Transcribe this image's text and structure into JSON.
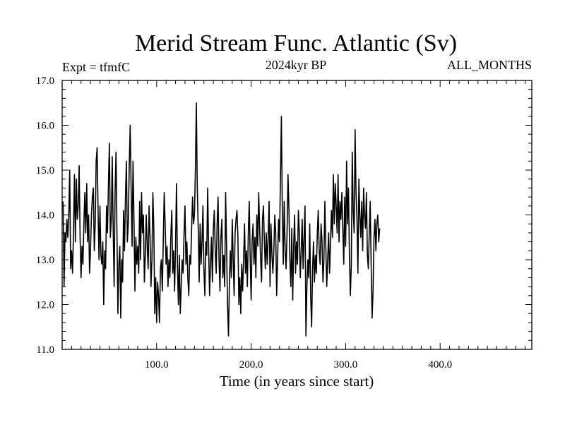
{
  "chart_data": {
    "type": "line",
    "title": "Merid Stream Func. Atlantic (Sv)",
    "experiment_label": "Expt = tfmfC",
    "period_label": "2024kyr BP",
    "months_label": "ALL_MONTHS",
    "xlabel": "Time (in years since start)",
    "ylabel": "",
    "xlim": [
      0,
      497
    ],
    "ylim": [
      11.0,
      17.0
    ],
    "x_ticks": [
      100,
      200,
      300,
      400
    ],
    "x_tick_labels": [
      "100.0",
      "200.0",
      "300.0",
      "400.0"
    ],
    "y_ticks": [
      11,
      12,
      13,
      14,
      15,
      16,
      17
    ],
    "y_tick_labels": [
      "11.0",
      "12.0",
      "13.0",
      "14.0",
      "15.0",
      "16.0",
      "17.0"
    ],
    "grid": false,
    "legend": "none",
    "line_color": "#000000",
    "series": [
      {
        "x_start": 1,
        "x_step": 1,
        "values": [
          14.3,
          12.4,
          13.6,
          13.4,
          13.9,
          13.5,
          14.0,
          15.0,
          12.8,
          13.2,
          12.7,
          13.6,
          14.9,
          13.4,
          14.8,
          13.9,
          14.2,
          15.1,
          13.5,
          12.6,
          13.3,
          12.9,
          13.8,
          14.5,
          13.6,
          14.7,
          13.4,
          14.0,
          12.7,
          13.2,
          14.0,
          14.4,
          14.6,
          13.2,
          13.8,
          15.2,
          15.5,
          14.1,
          13.0,
          14.2,
          13.1,
          12.9,
          13.4,
          12.0,
          13.2,
          12.8,
          14.2,
          13.6,
          14.7,
          15.6,
          13.5,
          13.9,
          15.3,
          13.7,
          12.4,
          14.5,
          15.4,
          13.6,
          11.8,
          12.9,
          13.3,
          11.7,
          13.0,
          12.5,
          14.1,
          13.2,
          14.4,
          15.2,
          13.4,
          13.8,
          15.1,
          16.0,
          14.6,
          13.3,
          15.2,
          13.9,
          12.3,
          13.5,
          12.9,
          13.3,
          12.7,
          14.3,
          13.0,
          14.5,
          13.6,
          14.0,
          12.5,
          13.1,
          14.0,
          13.3,
          12.8,
          14.2,
          13.5,
          12.4,
          13.0,
          14.5,
          13.7,
          11.8,
          12.6,
          11.6,
          12.5,
          12.2,
          11.6,
          12.8,
          13.0,
          12.3,
          13.4,
          14.5,
          13.8,
          12.9,
          13.3,
          12.4,
          13.0,
          12.6,
          13.5,
          14.1,
          12.7,
          13.2,
          12.3,
          13.3,
          14.7,
          12.9,
          12.0,
          13.1,
          11.8,
          12.4,
          13.0,
          12.7,
          13.6,
          14.2,
          12.9,
          13.4,
          12.6,
          12.2,
          13.1,
          12.9,
          13.7,
          14.4,
          13.8,
          14.0,
          15.0,
          16.5,
          14.6,
          13.7,
          12.5,
          13.8,
          12.9,
          13.4,
          14.2,
          12.8,
          12.2,
          13.4,
          13.1,
          14.6,
          13.3,
          12.2,
          12.9,
          13.5,
          12.5,
          13.7,
          14.1,
          13.2,
          12.7,
          13.8,
          14.4,
          13.0,
          12.3,
          13.5,
          13.9,
          12.6,
          13.1,
          12.4,
          14.5,
          13.3,
          12.0,
          11.3,
          12.5,
          13.2,
          12.6,
          13.9,
          13.0,
          12.2,
          13.6,
          13.9,
          14.1,
          13.5,
          12.0,
          12.6,
          11.8,
          12.9,
          12.3,
          13.0,
          13.8,
          12.7,
          13.2,
          12.4,
          13.6,
          14.3,
          13.0,
          12.1,
          13.4,
          13.8,
          12.9,
          13.5,
          12.6,
          14.0,
          13.3,
          14.5,
          13.7,
          13.0,
          12.5,
          13.9,
          14.2,
          13.4,
          12.8,
          13.6,
          12.9,
          13.5,
          14.3,
          12.4,
          13.8,
          13.1,
          12.7,
          13.2,
          14.0,
          13.6,
          12.2,
          13.0,
          13.9,
          13.4,
          14.8,
          16.2,
          14.1,
          12.9,
          14.3,
          13.2,
          12.8,
          13.6,
          14.9,
          14.1,
          13.0,
          12.4,
          13.7,
          12.1,
          13.3,
          14.0,
          12.7,
          13.4,
          12.9,
          14.1,
          13.6,
          12.6,
          13.2,
          13.9,
          12.8,
          13.5,
          14.2,
          11.3,
          12.4,
          13.0,
          12.6,
          13.8,
          12.2,
          11.5,
          12.8,
          13.4,
          12.5,
          13.1,
          12.7,
          13.6,
          14.1,
          13.2,
          12.9,
          13.8,
          13.4,
          12.5,
          13.0,
          14.3,
          13.3,
          12.4,
          13.0,
          13.6,
          12.7,
          13.4,
          14.1,
          13.5,
          14.9,
          13.8,
          14.7,
          14.2,
          13.6,
          14.9,
          13.4,
          14.3,
          13.9,
          14.5,
          13.7,
          12.9,
          14.4,
          13.3,
          15.2,
          13.8,
          14.6,
          13.1,
          12.2,
          12.9,
          15.4,
          14.1,
          13.6,
          15.9,
          14.5,
          13.9,
          12.7,
          14.8,
          14.0,
          13.5,
          14.3,
          13.2,
          14.6,
          14.0,
          13.7,
          14.5,
          13.1,
          12.8,
          13.6,
          14.3,
          12.9,
          11.7,
          12.3,
          13.5,
          13.9,
          13.2,
          13.8,
          14.0,
          13.4,
          13.7
        ]
      }
    ]
  }
}
